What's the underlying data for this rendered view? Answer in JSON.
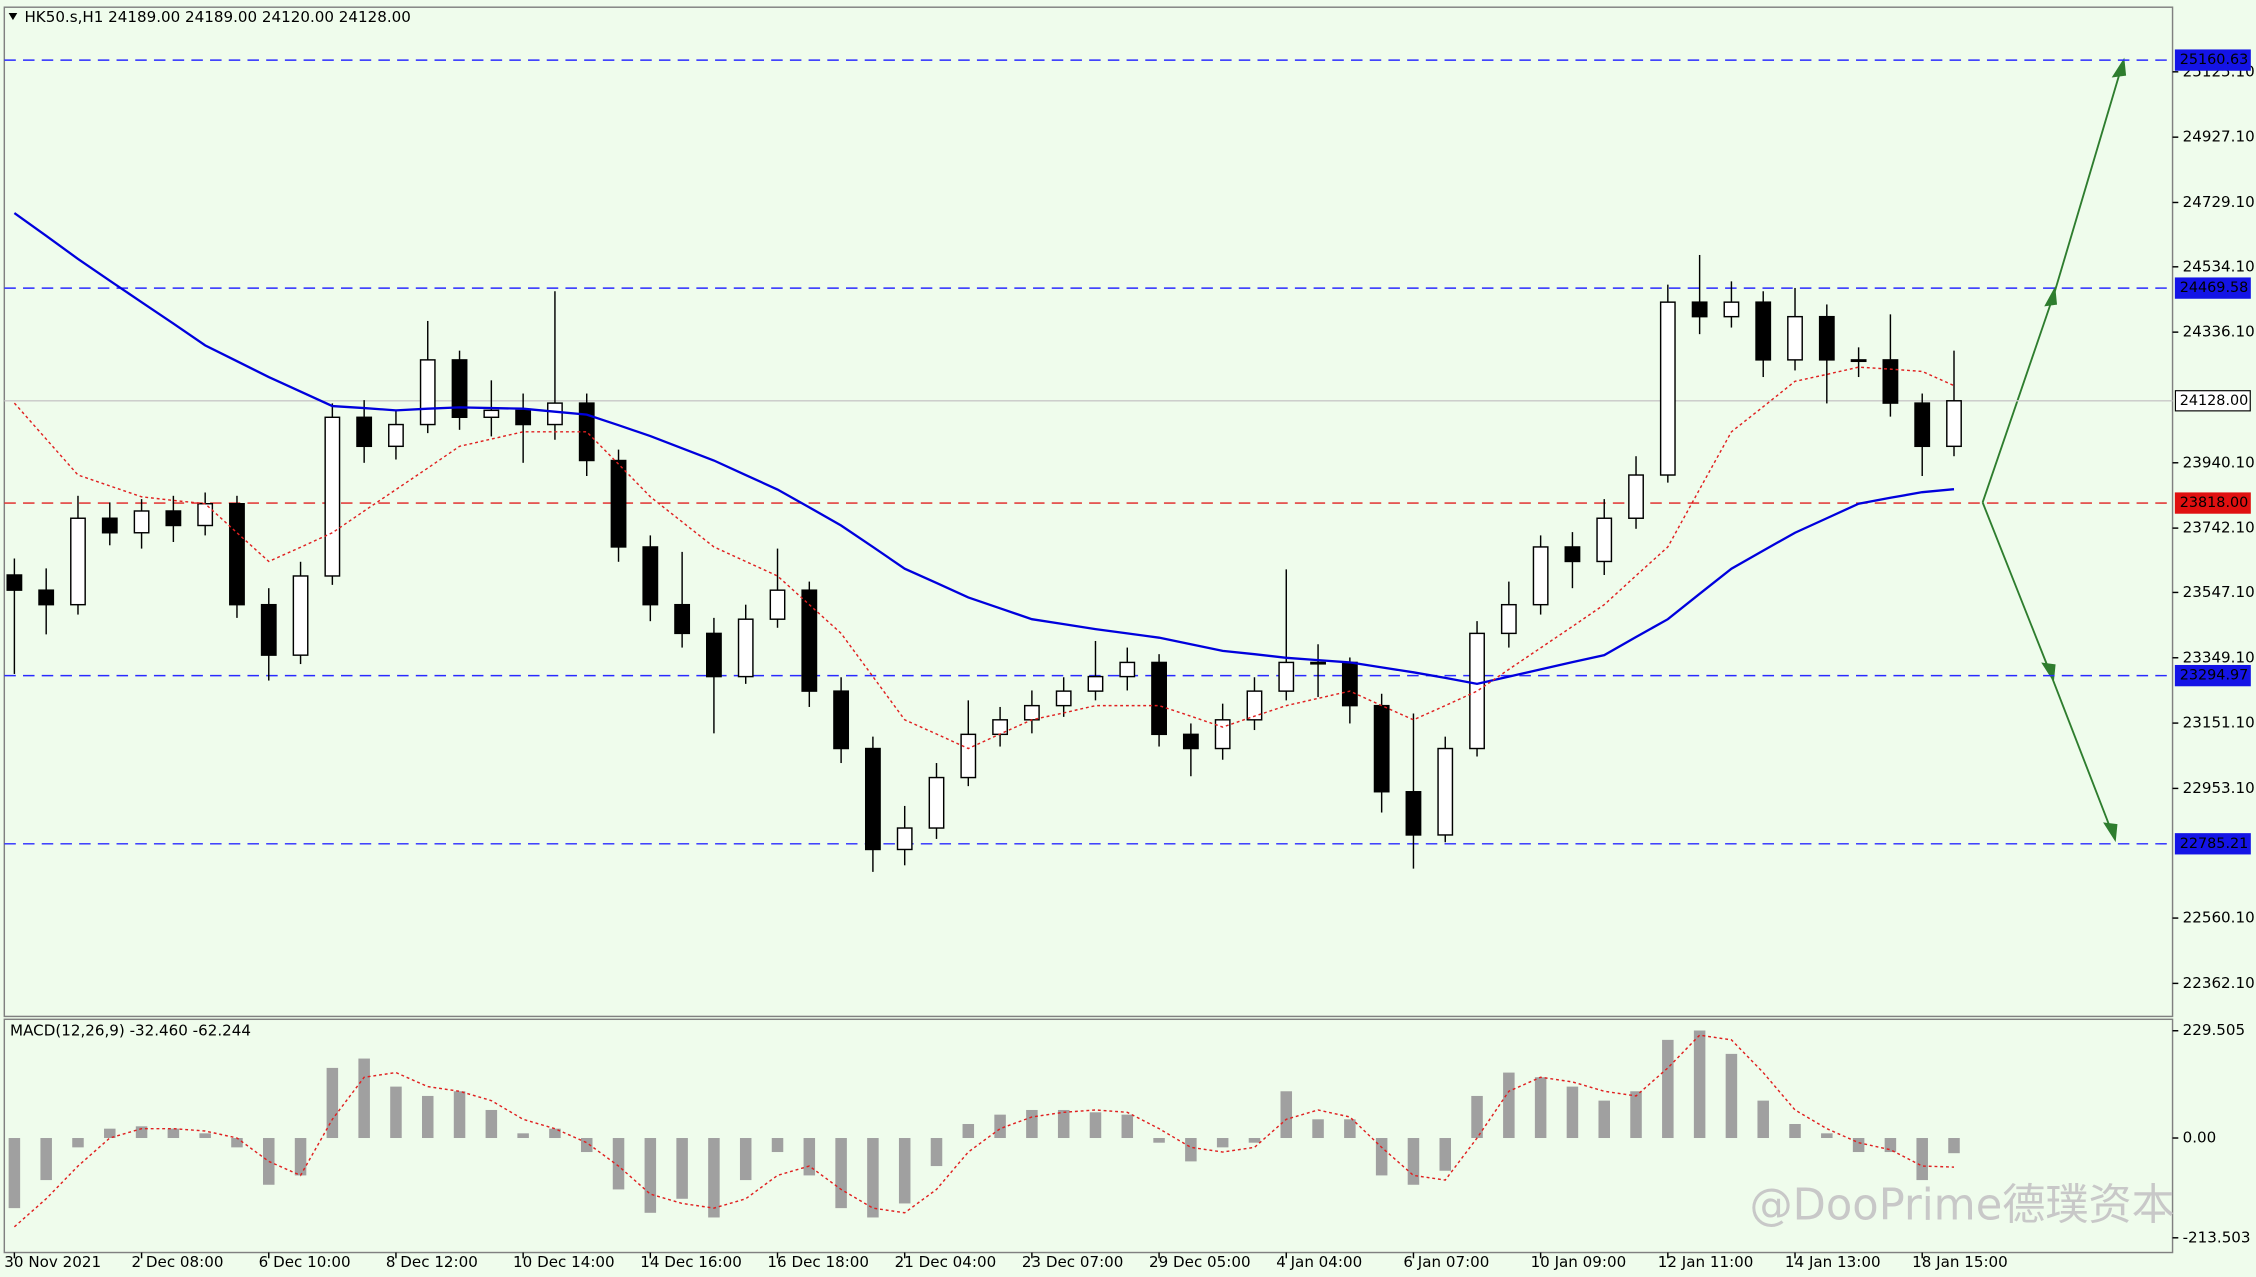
{
  "chart_data": {
    "type": "candlestick",
    "title": "HK50.s,H1  24189.00 24189.00 24120.00 24128.00",
    "background": "#effcec",
    "categories": [
      "30 Nov 2021",
      null,
      null,
      null,
      "2 Dec 08:00",
      null,
      null,
      null,
      "6 Dec 10:00",
      null,
      null,
      null,
      "8 Dec 12:00",
      null,
      null,
      null,
      "10 Dec 14:00",
      null,
      null,
      null,
      "14 Dec 16:00",
      null,
      null,
      null,
      "16 Dec 18:00",
      null,
      null,
      null,
      "21 Dec 04:00",
      null,
      null,
      null,
      "23 Dec 07:00",
      null,
      null,
      null,
      "29 Dec 05:00",
      null,
      null,
      null,
      "4 Jan 04:00",
      null,
      null,
      null,
      "6 Jan 07:00",
      null,
      null,
      null,
      "10 Jan 09:00",
      null,
      null,
      null,
      "12 Jan 11:00",
      null,
      null,
      null,
      "14 Jan 13:00",
      null,
      null,
      null,
      "18 Jan 15:00",
      null
    ],
    "open": [
      23600,
      23554,
      23510,
      23772,
      23728,
      23794,
      23750,
      23816,
      23510,
      23357,
      23597,
      24078,
      23990,
      24056,
      24252,
      24078,
      24099,
      24056,
      24121,
      23947,
      23685,
      23510,
      23423,
      23292,
      23466,
      23554,
      23248,
      23074,
      22768,
      22833,
      22986,
      23117,
      23161,
      23204,
      23248,
      23292,
      23335,
      23117,
      23074,
      23161,
      23248,
      23335,
      23335,
      23204,
      22943,
      22812,
      23074,
      23423,
      23510,
      23685,
      23641,
      23772,
      23903,
      24427,
      24383,
      24427,
      24252,
      24383,
      24252,
      24252,
      24121,
      23990
    ],
    "high": [
      23650,
      23620,
      23840,
      23820,
      23830,
      23840,
      23850,
      23840,
      23560,
      23640,
      24120,
      24130,
      24100,
      24370,
      24280,
      24190,
      24150,
      24460,
      24150,
      23980,
      23720,
      23670,
      23470,
      23510,
      23680,
      23580,
      23290,
      23110,
      22900,
      23030,
      23220,
      23200,
      23250,
      23290,
      23400,
      23380,
      23360,
      23150,
      23210,
      23290,
      23617,
      23390,
      23350,
      23240,
      23180,
      23110,
      23460,
      23580,
      23720,
      23730,
      23830,
      23960,
      24480,
      24570,
      24490,
      24460,
      24470,
      24420,
      24290,
      24390,
      24150,
      24280
    ],
    "low": [
      23300,
      23420,
      23480,
      23690,
      23680,
      23700,
      23720,
      23470,
      23280,
      23330,
      23570,
      23940,
      23950,
      24030,
      24040,
      24020,
      23940,
      24010,
      23900,
      23640,
      23460,
      23380,
      23120,
      23270,
      23440,
      23200,
      23030,
      22700,
      22720,
      22800,
      22960,
      23080,
      23120,
      23170,
      23220,
      23250,
      23080,
      22990,
      23040,
      23130,
      23220,
      23230,
      23150,
      22880,
      22710,
      22790,
      23050,
      23380,
      23480,
      23560,
      23600,
      23740,
      23880,
      24330,
      24350,
      24200,
      24220,
      24120,
      24200,
      24080,
      23900,
      23960
    ],
    "close": [
      23554,
      23510,
      23772,
      23728,
      23794,
      23750,
      23816,
      23510,
      23357,
      23597,
      24078,
      23990,
      24056,
      24252,
      24078,
      24099,
      24056,
      24121,
      23947,
      23685,
      23510,
      23423,
      23292,
      23466,
      23554,
      23248,
      23074,
      22768,
      22833,
      22986,
      23117,
      23161,
      23204,
      23248,
      23292,
      23335,
      23117,
      23074,
      23161,
      23248,
      23335,
      23335,
      23204,
      22943,
      22812,
      23074,
      23423,
      23510,
      23685,
      23641,
      23772,
      23903,
      24427,
      24383,
      24427,
      24252,
      24383,
      24252,
      24252,
      24121,
      23990,
      24128
    ],
    "up_color": "#ffffff",
    "down_color": "#000000",
    "ylim": [
      22262,
      25321
    ],
    "yticks": [
      {
        "value": 25125.1,
        "label": "25125.10"
      },
      {
        "value": 24927.1,
        "label": "24927.10"
      },
      {
        "value": 24729.1,
        "label": "24729.10"
      },
      {
        "value": 24534.1,
        "label": "24534.10"
      },
      {
        "value": 24336.1,
        "label": "24336.10"
      },
      {
        "value": 23940.1,
        "label": "23940.10"
      },
      {
        "value": 23742.1,
        "label": "23742.10"
      },
      {
        "value": 23547.1,
        "label": "23547.10"
      },
      {
        "value": 23349.1,
        "label": "23349.10"
      },
      {
        "value": 23151.1,
        "label": "23151.10"
      },
      {
        "value": 22953.1,
        "label": "22953.10"
      },
      {
        "value": 22560.1,
        "label": "22560.10"
      },
      {
        "value": 22362.1,
        "label": "22362.10"
      }
    ],
    "indicators": [
      {
        "color": "#0000dd",
        "dashed": false,
        "values": [
          24697,
          24628,
          24558,
          24492,
          24427,
          24362,
          24296,
          24248,
          24200,
          24156,
          24112,
          24106,
          24099,
          24104,
          24108,
          24106,
          24104,
          24095,
          24086,
          24054,
          24021,
          23984,
          23947,
          23903,
          23859,
          23805,
          23750,
          23685,
          23619,
          23576,
          23532,
          23499,
          23466,
          23451,
          23436,
          23423,
          23410,
          23390,
          23370,
          23360,
          23349,
          23342,
          23335,
          23320,
          23305,
          23288,
          23270,
          23292,
          23314,
          23336,
          23357,
          23412,
          23466,
          23543,
          23619,
          23674,
          23728,
          23772,
          23816,
          23834,
          23851,
          23860
        ]
      },
      {
        "color": "#e02020",
        "dashed": true,
        "values": [
          24121,
          24012,
          23903,
          23870,
          23837,
          23826,
          23816,
          23728,
          23641,
          23684,
          23728,
          23794,
          23859,
          23924,
          23990,
          24012,
          24034,
          24034,
          24034,
          23936,
          23837,
          23761,
          23685,
          23641,
          23597,
          23510,
          23423,
          23292,
          23161,
          23118,
          23074,
          23118,
          23161,
          23182,
          23204,
          23204,
          23204,
          23172,
          23139,
          23172,
          23204,
          23226,
          23248,
          23204,
          23161,
          23204,
          23248,
          23314,
          23379,
          23444,
          23510,
          23598,
          23685,
          23860,
          24034,
          24110,
          24187,
          24208,
          24230,
          24224,
          24217,
          24174
        ]
      }
    ],
    "levels": [
      {
        "value": 25160.63,
        "label": "25160.63",
        "color": "#2a2aff",
        "box": "#1414e6",
        "text_color": "#ffffff",
        "dashed": true
      },
      {
        "value": 24469.58,
        "label": "24469.58",
        "color": "#2a2aff",
        "box": "#1414e6",
        "text_color": "#ffffff",
        "dashed": true
      },
      {
        "value": 24128,
        "label": "24128.00",
        "color": "#c8c8c8",
        "box": "#ffffff",
        "text_color": "#000000",
        "dashed": false
      },
      {
        "value": 23818,
        "label": "23818.00",
        "color": "#e02020",
        "box": "#e01010",
        "text_color": "#ffffff",
        "dashed": true
      },
      {
        "value": 23294.97,
        "label": "23294.97",
        "color": "#2a2aff",
        "box": "#1414e6",
        "text_color": "#ffffff",
        "dashed": true
      },
      {
        "value": 22785.21,
        "label": "22785.21",
        "color": "#2a2aff",
        "box": "#1414e6",
        "text_color": "#ffffff",
        "dashed": true
      }
    ],
    "macd": {
      "title": "MACD(12,26,9) -32.460 -62.244",
      "ylim": [
        -245,
        254
      ],
      "yticks": [
        229.505,
        {
          "value": 0,
          "label": "0.00"
        },
        -213.503
      ],
      "histogram_color": "#a0a0a0",
      "signal_color": "#e02020",
      "histogram": [
        -150,
        -90,
        -20,
        20,
        25,
        20,
        10,
        -20,
        -100,
        -80,
        150,
        170,
        110,
        90,
        100,
        60,
        10,
        20,
        -30,
        -110,
        -160,
        -130,
        -170,
        -90,
        -30,
        -80,
        -150,
        -170,
        -140,
        -60,
        30,
        50,
        60,
        60,
        55,
        50,
        -10,
        -50,
        -20,
        -10,
        100,
        40,
        40,
        -80,
        -100,
        -70,
        90,
        140,
        130,
        110,
        80,
        100,
        210,
        230,
        180,
        80,
        30,
        10,
        -30,
        -30,
        -90,
        -32.46
      ],
      "signal": [
        -190,
        -130,
        -60,
        0,
        20,
        20,
        15,
        0,
        -50,
        -80,
        40,
        130,
        140,
        110,
        100,
        80,
        40,
        20,
        -10,
        -60,
        -120,
        -140,
        -150,
        -130,
        -80,
        -60,
        -110,
        -150,
        -160,
        -110,
        -30,
        20,
        45,
        55,
        60,
        55,
        20,
        -20,
        -30,
        -20,
        40,
        60,
        45,
        -20,
        -80,
        -90,
        0,
        100,
        130,
        120,
        100,
        90,
        150,
        220,
        210,
        140,
        60,
        20,
        -10,
        -25,
        -60,
        -62.244
      ]
    },
    "watermark": "@DooPrime德璞资本"
  }
}
